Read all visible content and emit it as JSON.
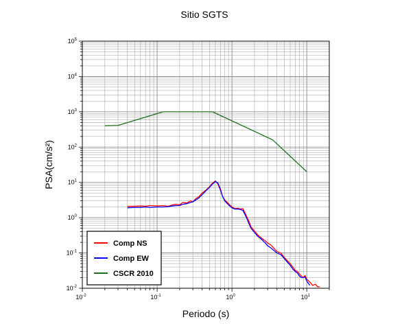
{
  "chart_data": {
    "type": "line",
    "title": "Sitio SGTS",
    "xlabel": "Periodo (s)",
    "ylabel": "PSA(cm/s²)",
    "x_scale": "log",
    "y_scale": "log",
    "xlim": [
      0.01,
      20
    ],
    "ylim": [
      0.01,
      100000
    ],
    "grid": true,
    "legend_position": "bottom-left",
    "x_ticks": [
      {
        "value": 0.01,
        "base": "10",
        "exp": "-2"
      },
      {
        "value": 0.1,
        "base": "10",
        "exp": "-1"
      },
      {
        "value": 1,
        "base": "10",
        "exp": "0"
      },
      {
        "value": 10,
        "base": "10",
        "exp": "1"
      }
    ],
    "y_ticks": [
      {
        "value": 0.01,
        "base": "10",
        "exp": "-2"
      },
      {
        "value": 0.1,
        "base": "10",
        "exp": "-1"
      },
      {
        "value": 1,
        "base": "10",
        "exp": "0"
      },
      {
        "value": 10,
        "base": "10",
        "exp": "1"
      },
      {
        "value": 100,
        "base": "10",
        "exp": "2"
      },
      {
        "value": 1000,
        "base": "10",
        "exp": "3"
      },
      {
        "value": 10000,
        "base": "10",
        "exp": "4"
      },
      {
        "value": 100000,
        "base": "10",
        "exp": "5"
      }
    ],
    "series": [
      {
        "name": "Comp NS",
        "color": "#ff0000",
        "x": [
          0.04,
          0.05,
          0.06,
          0.07,
          0.08,
          0.1,
          0.12,
          0.14,
          0.16,
          0.18,
          0.2,
          0.22,
          0.25,
          0.28,
          0.3,
          0.33,
          0.36,
          0.4,
          0.45,
          0.5,
          0.55,
          0.6,
          0.65,
          0.7,
          0.75,
          0.8,
          0.9,
          1.0,
          1.1,
          1.2,
          1.3,
          1.4,
          1.5,
          1.6,
          1.7,
          1.8,
          2.0,
          2.2,
          2.5,
          2.8,
          3.0,
          3.3,
          3.6,
          4.0,
          4.5,
          5.0,
          5.5,
          6.0,
          6.5,
          7.0,
          7.5,
          8.0,
          8.5,
          9.0,
          9.5,
          10,
          11,
          12,
          13,
          14,
          15
        ],
        "y": [
          2.1,
          2.1,
          2.15,
          2.1,
          2.2,
          2.15,
          2.2,
          2.1,
          2.3,
          2.4,
          2.3,
          2.7,
          2.6,
          3.0,
          2.8,
          3.5,
          3.9,
          5.0,
          6.0,
          7.5,
          9.5,
          11.0,
          9.0,
          6.0,
          4.0,
          3.2,
          2.5,
          2.0,
          1.8,
          1.85,
          1.75,
          1.8,
          1.35,
          1.0,
          0.75,
          0.55,
          0.42,
          0.33,
          0.26,
          0.22,
          0.19,
          0.17,
          0.14,
          0.11,
          0.1,
          0.075,
          0.06,
          0.05,
          0.04,
          0.032,
          0.03,
          0.025,
          0.022,
          0.02,
          0.023,
          0.018,
          0.015,
          0.012,
          0.013,
          0.011,
          0.011
        ]
      },
      {
        "name": "Comp EW",
        "color": "#0000ff",
        "x": [
          0.04,
          0.05,
          0.06,
          0.07,
          0.08,
          0.1,
          0.12,
          0.14,
          0.16,
          0.18,
          0.2,
          0.22,
          0.25,
          0.28,
          0.3,
          0.33,
          0.36,
          0.4,
          0.45,
          0.5,
          0.55,
          0.6,
          0.65,
          0.7,
          0.75,
          0.8,
          0.9,
          1.0,
          1.1,
          1.2,
          1.3,
          1.4,
          1.5,
          1.6,
          1.7,
          1.8,
          2.0,
          2.2,
          2.5,
          2.8,
          3.0,
          3.3,
          3.6,
          4.0,
          4.5,
          5.0,
          5.5,
          6.0,
          6.5,
          7.0,
          7.5,
          8.0,
          8.5,
          9.0,
          9.5,
          10,
          11
        ],
        "y": [
          1.9,
          1.95,
          1.95,
          2.0,
          1.95,
          2.0,
          2.0,
          2.05,
          2.15,
          2.2,
          2.2,
          2.4,
          2.5,
          2.7,
          2.8,
          3.2,
          3.6,
          4.5,
          5.8,
          7.2,
          9.0,
          10.5,
          9.5,
          6.5,
          4.0,
          3.0,
          2.3,
          1.9,
          1.75,
          1.75,
          1.7,
          1.6,
          1.2,
          0.9,
          0.65,
          0.5,
          0.38,
          0.3,
          0.24,
          0.19,
          0.16,
          0.14,
          0.12,
          0.1,
          0.09,
          0.07,
          0.055,
          0.045,
          0.035,
          0.03,
          0.027,
          0.022,
          0.02,
          0.02,
          0.021,
          0.016,
          0.012
        ]
      },
      {
        "name": "CSCR 2010",
        "color": "#1e6e1e",
        "x": [
          0.02,
          0.03,
          0.12,
          0.55,
          3.5,
          10
        ],
        "y": [
          400,
          410,
          1000,
          1000,
          160,
          20
        ]
      }
    ]
  }
}
